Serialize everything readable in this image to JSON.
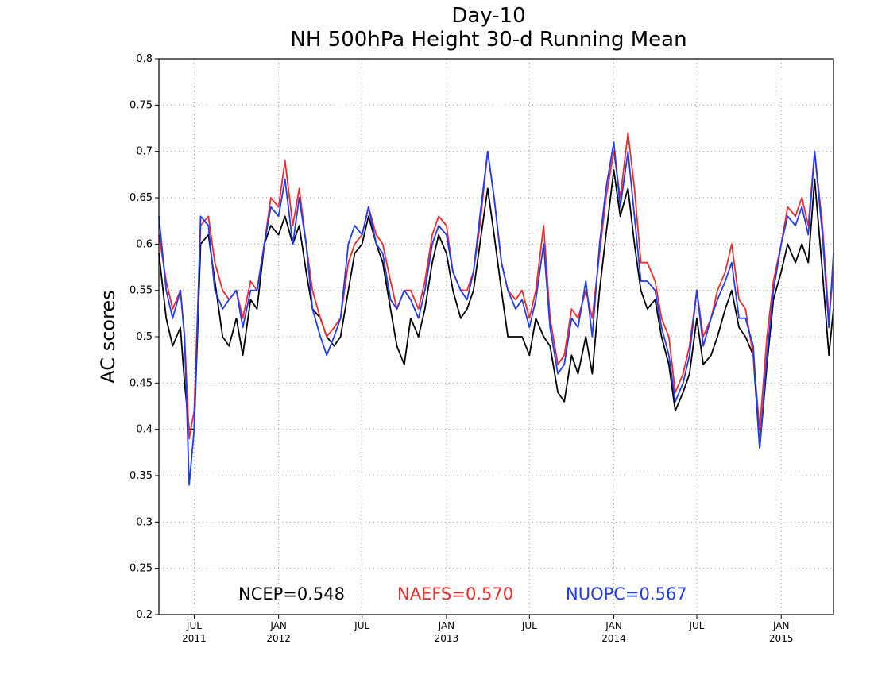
{
  "chart_data": {
    "type": "line",
    "title": "Day-10",
    "subtitle": "NH 500hPa Height 30-d Running Mean",
    "ylabel": "AC scores",
    "xlabel": "",
    "ylim": [
      0.2,
      0.8
    ],
    "yticks": [
      "0.2",
      "0.25",
      "0.3",
      "0.35",
      "0.4",
      "0.45",
      "0.5",
      "0.55",
      "0.6",
      "0.65",
      "0.7",
      "0.75",
      "0.8"
    ],
    "xlim": [
      "2011-04-15",
      "2015-04-25"
    ],
    "xticks": [
      {
        "date": "2011-07-01",
        "month": "JUL",
        "year": "2011"
      },
      {
        "date": "2012-01-01",
        "month": "JAN",
        "year": "2012"
      },
      {
        "date": "2012-07-01",
        "month": "JUL",
        "year": ""
      },
      {
        "date": "2013-01-01",
        "month": "JAN",
        "year": "2013"
      },
      {
        "date": "2013-07-01",
        "month": "JUL",
        "year": ""
      },
      {
        "date": "2014-01-01",
        "month": "JAN",
        "year": "2014"
      },
      {
        "date": "2014-07-01",
        "month": "JUL",
        "year": ""
      },
      {
        "date": "2015-01-01",
        "month": "JAN",
        "year": "2015"
      }
    ],
    "grid": true,
    "legend": "bottom",
    "stats": [
      {
        "label": "NCEP=0.548",
        "color": "#000000"
      },
      {
        "label": "NAEFS=0.570",
        "color": "#ee2c2c"
      },
      {
        "label": "NUOPC=0.567",
        "color": "#1f3cf0"
      }
    ],
    "x": [
      "2011-04-15",
      "2011-05-01",
      "2011-05-15",
      "2011-06-01",
      "2011-06-10",
      "2011-06-20",
      "2011-07-01",
      "2011-07-15",
      "2011-08-01",
      "2011-08-15",
      "2011-09-01",
      "2011-09-15",
      "2011-10-01",
      "2011-10-15",
      "2011-11-01",
      "2011-11-15",
      "2011-12-01",
      "2011-12-15",
      "2012-01-01",
      "2012-01-15",
      "2012-02-01",
      "2012-02-15",
      "2012-03-01",
      "2012-03-15",
      "2012-04-01",
      "2012-04-15",
      "2012-05-01",
      "2012-05-15",
      "2012-06-01",
      "2012-06-15",
      "2012-07-01",
      "2012-07-15",
      "2012-08-01",
      "2012-08-15",
      "2012-09-01",
      "2012-09-15",
      "2012-10-01",
      "2012-10-15",
      "2012-11-01",
      "2012-11-15",
      "2012-12-01",
      "2012-12-15",
      "2013-01-01",
      "2013-01-15",
      "2013-02-01",
      "2013-02-15",
      "2013-03-01",
      "2013-03-15",
      "2013-04-01",
      "2013-04-15",
      "2013-05-01",
      "2013-05-15",
      "2013-06-01",
      "2013-06-15",
      "2013-07-01",
      "2013-07-15",
      "2013-08-01",
      "2013-08-15",
      "2013-09-01",
      "2013-09-15",
      "2013-10-01",
      "2013-10-15",
      "2013-11-01",
      "2013-11-15",
      "2013-12-01",
      "2013-12-15",
      "2014-01-01",
      "2014-01-15",
      "2014-02-01",
      "2014-02-15",
      "2014-03-01",
      "2014-03-15",
      "2014-04-01",
      "2014-04-15",
      "2014-05-01",
      "2014-05-15",
      "2014-06-01",
      "2014-06-15",
      "2014-07-01",
      "2014-07-15",
      "2014-08-01",
      "2014-08-15",
      "2014-09-01",
      "2014-09-15",
      "2014-10-01",
      "2014-10-15",
      "2014-11-01",
      "2014-11-15",
      "2014-12-01",
      "2014-12-15",
      "2015-01-01",
      "2015-01-15",
      "2015-02-01",
      "2015-02-15",
      "2015-03-01",
      "2015-03-15",
      "2015-04-01",
      "2015-04-15",
      "2015-04-25"
    ],
    "series": [
      {
        "name": "NCEP",
        "color": "#000000",
        "values": [
          0.59,
          0.52,
          0.49,
          0.51,
          0.45,
          0.4,
          0.4,
          0.6,
          0.61,
          0.56,
          0.5,
          0.49,
          0.52,
          0.48,
          0.54,
          0.53,
          0.6,
          0.62,
          0.61,
          0.63,
          0.6,
          0.62,
          0.57,
          0.53,
          0.52,
          0.5,
          0.49,
          0.5,
          0.55,
          0.59,
          0.6,
          0.63,
          0.6,
          0.58,
          0.53,
          0.49,
          0.47,
          0.52,
          0.5,
          0.53,
          0.58,
          0.61,
          0.59,
          0.55,
          0.52,
          0.53,
          0.55,
          0.6,
          0.66,
          0.61,
          0.55,
          0.5,
          0.5,
          0.5,
          0.48,
          0.52,
          0.5,
          0.49,
          0.44,
          0.43,
          0.48,
          0.46,
          0.5,
          0.46,
          0.55,
          0.61,
          0.68,
          0.63,
          0.66,
          0.6,
          0.55,
          0.53,
          0.54,
          0.5,
          0.47,
          0.42,
          0.44,
          0.46,
          0.52,
          0.47,
          0.48,
          0.5,
          0.53,
          0.55,
          0.51,
          0.5,
          0.48,
          0.38,
          0.47,
          0.54,
          0.57,
          0.6,
          0.58,
          0.6,
          0.58,
          0.67,
          0.57,
          0.48,
          0.53
        ]
      },
      {
        "name": "NAEFS",
        "color": "#ee2c2c",
        "values": [
          0.61,
          0.56,
          0.53,
          0.55,
          0.5,
          0.39,
          0.42,
          0.62,
          0.63,
          0.58,
          0.55,
          0.54,
          0.55,
          0.52,
          0.56,
          0.55,
          0.6,
          0.65,
          0.64,
          0.69,
          0.62,
          0.66,
          0.6,
          0.55,
          0.52,
          0.5,
          0.51,
          0.52,
          0.58,
          0.6,
          0.61,
          0.64,
          0.61,
          0.6,
          0.56,
          0.53,
          0.55,
          0.55,
          0.53,
          0.56,
          0.61,
          0.63,
          0.62,
          0.57,
          0.55,
          0.55,
          0.57,
          0.62,
          0.7,
          0.65,
          0.58,
          0.55,
          0.54,
          0.55,
          0.52,
          0.55,
          0.62,
          0.52,
          0.47,
          0.48,
          0.53,
          0.52,
          0.55,
          0.52,
          0.59,
          0.65,
          0.7,
          0.65,
          0.72,
          0.66,
          0.58,
          0.58,
          0.56,
          0.52,
          0.5,
          0.44,
          0.46,
          0.49,
          0.55,
          0.5,
          0.52,
          0.55,
          0.57,
          0.6,
          0.54,
          0.53,
          0.48,
          0.4,
          0.5,
          0.56,
          0.6,
          0.64,
          0.63,
          0.65,
          0.62,
          0.7,
          0.62,
          0.52,
          0.57
        ]
      },
      {
        "name": "NUOPC",
        "color": "#1f3cf0",
        "values": [
          0.63,
          0.55,
          0.52,
          0.55,
          0.5,
          0.34,
          0.4,
          0.63,
          0.62,
          0.55,
          0.53,
          0.54,
          0.55,
          0.51,
          0.55,
          0.55,
          0.6,
          0.64,
          0.63,
          0.67,
          0.6,
          0.65,
          0.6,
          0.53,
          0.5,
          0.48,
          0.5,
          0.52,
          0.6,
          0.62,
          0.61,
          0.64,
          0.6,
          0.59,
          0.54,
          0.53,
          0.55,
          0.54,
          0.52,
          0.55,
          0.6,
          0.62,
          0.61,
          0.57,
          0.55,
          0.54,
          0.57,
          0.63,
          0.7,
          0.65,
          0.58,
          0.55,
          0.53,
          0.54,
          0.51,
          0.54,
          0.6,
          0.51,
          0.46,
          0.47,
          0.52,
          0.51,
          0.56,
          0.5,
          0.6,
          0.66,
          0.71,
          0.64,
          0.7,
          0.63,
          0.56,
          0.56,
          0.55,
          0.51,
          0.48,
          0.43,
          0.45,
          0.48,
          0.55,
          0.49,
          0.52,
          0.54,
          0.56,
          0.58,
          0.52,
          0.52,
          0.49,
          0.38,
          0.48,
          0.55,
          0.6,
          0.63,
          0.62,
          0.64,
          0.61,
          0.7,
          0.61,
          0.51,
          0.59
        ]
      }
    ]
  }
}
